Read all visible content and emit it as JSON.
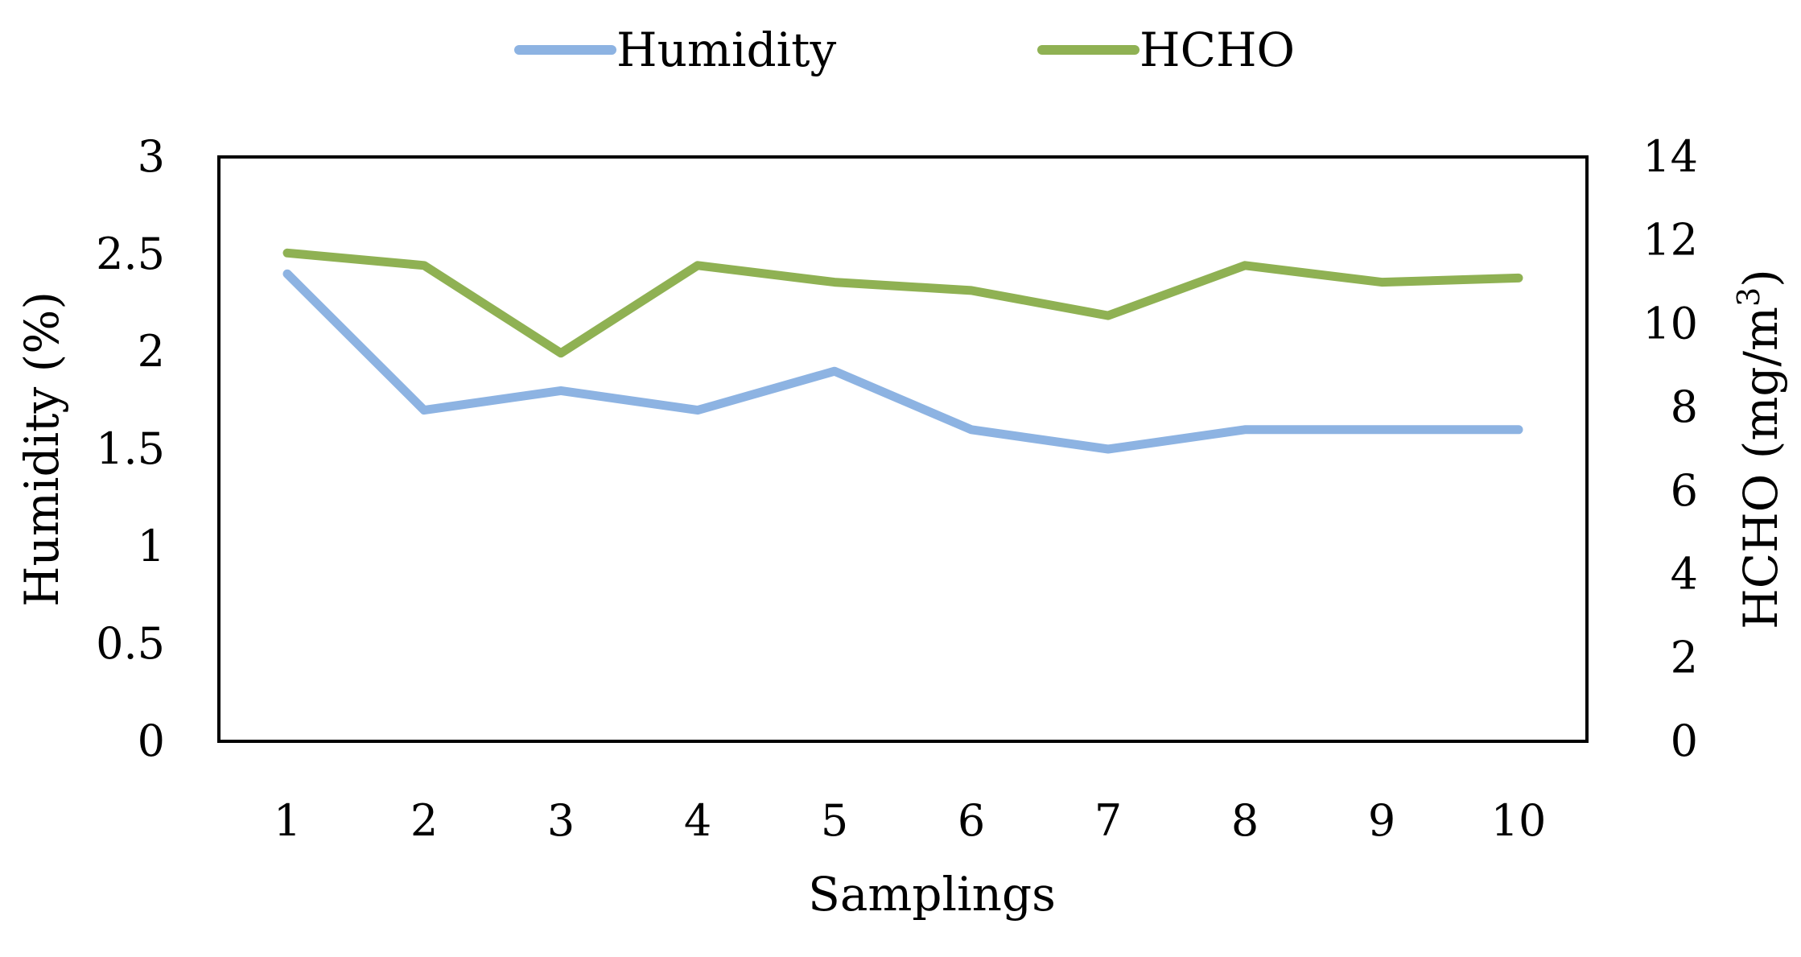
{
  "chart_data": {
    "type": "line",
    "x": [
      1,
      2,
      3,
      4,
      5,
      6,
      7,
      8,
      9,
      10
    ],
    "xlabel": "Samplings",
    "ylabel_left": "Humidity (%)",
    "ylabel_right_main": "HCHO (mg/m",
    "ylabel_right_sup": "3",
    "ylabel_right_end": ")",
    "ylim_left": [
      0,
      3
    ],
    "ylim_right": [
      0,
      14
    ],
    "yticks_left": [
      "0",
      "0.5",
      "1",
      "1.5",
      "2",
      "2.5",
      "3"
    ],
    "yticks_right": [
      "0",
      "2",
      "4",
      "6",
      "8",
      "10",
      "12",
      "14"
    ],
    "xticks": [
      "1",
      "2",
      "3",
      "4",
      "5",
      "6",
      "7",
      "8",
      "9",
      "10"
    ],
    "grid": false,
    "legend_position": "top",
    "series": [
      {
        "name": "Humidity",
        "axis": "left",
        "color": "#8DB3E2",
        "values": [
          2.4,
          1.7,
          1.8,
          1.7,
          1.9,
          1.6,
          1.5,
          1.6,
          1.6,
          1.6
        ]
      },
      {
        "name": "HCHO",
        "axis": "right",
        "color": "#8FB153",
        "values": [
          11.7,
          11.4,
          9.3,
          11.4,
          11.0,
          10.8,
          10.2,
          11.4,
          11.0,
          11.1
        ]
      }
    ]
  }
}
